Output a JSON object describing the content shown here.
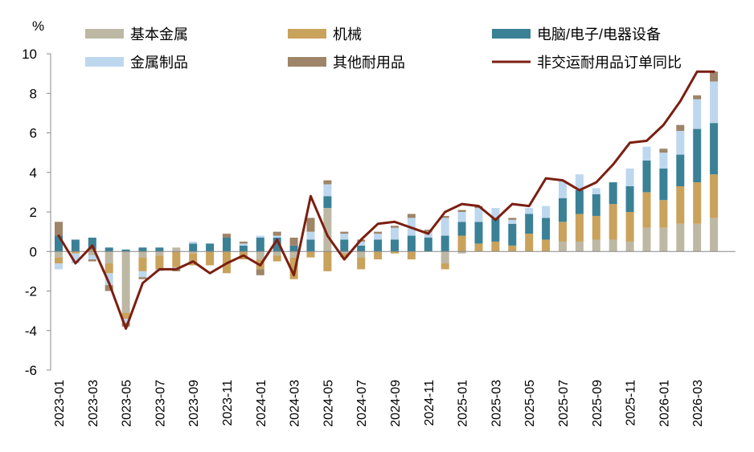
{
  "chart_data": {
    "type": "bar",
    "stacked": true,
    "y_unit": "%",
    "ylim": [
      -6,
      10
    ],
    "yticks": [
      -6,
      -4,
      -2,
      0,
      2,
      4,
      6,
      8,
      10
    ],
    "grid": false,
    "legend_position": "top",
    "categories": [
      "2023-01",
      "2023-02",
      "2023-03",
      "2023-04",
      "2023-05",
      "2023-06",
      "2023-07",
      "2023-08",
      "2023-09",
      "2023-10",
      "2023-11",
      "2023-12",
      "2024-01",
      "2024-02",
      "2024-03",
      "2024-04",
      "2024-05",
      "2024-06",
      "2024-07",
      "2024-08",
      "2024-09",
      "2024-10",
      "2024-11",
      "2024-12",
      "2025-01",
      "2025-02",
      "2025-03",
      "2025-04",
      "2025-05",
      "2025-06",
      "2025-07",
      "2025-08",
      "2025-09",
      "2025-10",
      "2025-11",
      "2025-12",
      "2026-01",
      "2026-02",
      "2026-03",
      "2026-04"
    ],
    "xtick_labels": [
      "2023-01",
      "2023-03",
      "2023-05",
      "2023-07",
      "2023-09",
      "2023-11",
      "2024-01",
      "2024-03",
      "2024-05",
      "2024-07",
      "2024-09",
      "2024-11",
      "2025-01",
      "2025-03",
      "2025-05",
      "2025-07",
      "2025-09",
      "2025-11",
      "2026-01",
      "2026-03"
    ],
    "series": [
      {
        "name": "基本金属",
        "kind": "bar",
        "color": "#bdb8a4",
        "values": [
          -0.3,
          0.0,
          -0.2,
          -0.6,
          -3.1,
          -0.3,
          -0.2,
          0.2,
          -0.1,
          0.0,
          0.0,
          0.0,
          -0.4,
          -0.2,
          -0.3,
          0.0,
          2.2,
          -0.1,
          -0.3,
          0.0,
          0.0,
          0.0,
          0.0,
          -0.6,
          -0.1,
          0.0,
          0.0,
          0.0,
          0.0,
          0.0,
          0.5,
          0.5,
          0.6,
          0.6,
          0.5,
          1.2,
          1.2,
          1.4,
          1.4,
          1.7
        ]
      },
      {
        "name": "机械",
        "kind": "bar",
        "color": "#c9a25c",
        "values": [
          -0.3,
          -0.1,
          0.1,
          -0.5,
          -0.3,
          -0.7,
          -0.7,
          -0.8,
          -0.6,
          -0.7,
          -1.1,
          -0.4,
          -0.5,
          -0.3,
          -1.1,
          -0.3,
          -1.0,
          -0.2,
          -0.6,
          -0.4,
          -0.1,
          -0.4,
          0.0,
          -0.3,
          0.8,
          0.4,
          0.5,
          0.3,
          0.9,
          0.6,
          1.0,
          1.4,
          1.2,
          1.8,
          1.5,
          1.8,
          1.4,
          1.9,
          2.1,
          2.2
        ]
      },
      {
        "name": "电脑/电子/电器设备",
        "kind": "bar",
        "color": "#3a8196",
        "values": [
          0.8,
          0.6,
          0.6,
          0.2,
          0.1,
          0.2,
          0.2,
          0.0,
          0.4,
          0.4,
          0.7,
          0.3,
          0.7,
          0.7,
          0.3,
          0.6,
          0.6,
          0.6,
          0.3,
          0.6,
          0.6,
          0.8,
          0.7,
          0.8,
          0.7,
          1.1,
          1.2,
          1.1,
          1.0,
          1.1,
          1.2,
          1.2,
          1.1,
          1.1,
          1.3,
          1.6,
          1.6,
          1.6,
          2.7,
          2.6
        ]
      },
      {
        "name": "金属制品",
        "kind": "bar",
        "color": "#bdd7ee",
        "values": [
          -0.3,
          -0.5,
          -0.2,
          -0.6,
          -0.2,
          -0.3,
          -0.1,
          -0.1,
          0.1,
          0.0,
          0.0,
          0.1,
          0.1,
          0.1,
          0.0,
          0.4,
          0.6,
          0.3,
          0.2,
          0.3,
          0.6,
          0.9,
          0.3,
          0.9,
          0.5,
          0.7,
          0.5,
          0.2,
          0.3,
          0.6,
          0.9,
          0.8,
          0.3,
          0.0,
          0.9,
          0.7,
          0.8,
          1.2,
          1.5,
          2.1
        ]
      },
      {
        "name": "其他耐用品",
        "kind": "bar",
        "color": "#9e8468",
        "values": [
          0.7,
          0.0,
          -0.1,
          -0.3,
          -0.2,
          -0.1,
          0.0,
          -0.1,
          0.0,
          0.0,
          0.2,
          0.1,
          -0.3,
          0.2,
          0.4,
          0.7,
          0.2,
          0.1,
          0.1,
          0.1,
          0.1,
          0.2,
          0.1,
          0.1,
          0.1,
          0.1,
          0.0,
          0.1,
          0.0,
          0.0,
          0.0,
          0.0,
          0.0,
          0.0,
          0.0,
          0.0,
          0.2,
          0.3,
          0.2,
          0.5
        ]
      },
      {
        "name": "非交运耐用品订单同比",
        "kind": "line",
        "color": "#7b1f12",
        "values": [
          0.8,
          -0.6,
          0.3,
          -1.6,
          -3.9,
          -1.6,
          -0.9,
          -0.9,
          -0.5,
          -1.1,
          -0.6,
          -0.2,
          -0.7,
          0.6,
          -1.2,
          2.8,
          0.8,
          -0.4,
          0.6,
          1.4,
          1.5,
          1.2,
          0.9,
          2.0,
          2.4,
          2.3,
          1.6,
          2.4,
          2.3,
          3.7,
          3.6,
          3.1,
          3.5,
          4.4,
          5.5,
          5.6,
          6.4,
          7.6,
          9.1,
          9.1
        ]
      }
    ]
  }
}
